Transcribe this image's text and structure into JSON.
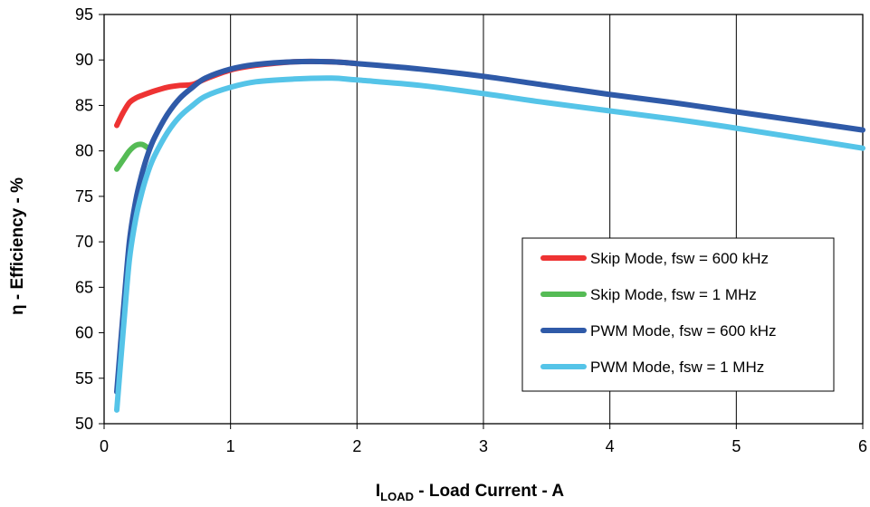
{
  "chart_data": {
    "type": "line",
    "title": "",
    "xlabel_main": "I",
    "xlabel_sub": "LOAD",
    "xlabel_rest": " - Load Current - A",
    "ylabel": "η - Efficiency - %",
    "xlim": [
      0,
      6
    ],
    "ylim": [
      50,
      95
    ],
    "xticks": [
      "0",
      "1",
      "2",
      "3",
      "4",
      "5",
      "6"
    ],
    "yticks": [
      "50",
      "55",
      "60",
      "65",
      "70",
      "75",
      "80",
      "85",
      "90",
      "95"
    ],
    "grid": "vertical",
    "legend_position": "lower-right",
    "series": [
      {
        "name": "Skip Mode, fsw = 600 kHz",
        "color": "#ee3333",
        "x": [
          0.1,
          0.15,
          0.2,
          0.25,
          0.3,
          0.4,
          0.5,
          0.6,
          0.7,
          0.8,
          1.0,
          1.2,
          1.5,
          1.8,
          2.0
        ],
        "y": [
          82.8,
          84.2,
          85.3,
          85.8,
          86.1,
          86.6,
          87.0,
          87.2,
          87.3,
          87.9,
          88.9,
          89.4,
          89.8,
          89.8,
          89.6
        ]
      },
      {
        "name": "Skip Mode, fsw = 1 MHz",
        "color": "#55bb55",
        "x": [
          0.1,
          0.15,
          0.2,
          0.25,
          0.3,
          0.35
        ],
        "y": [
          78.0,
          79.0,
          80.0,
          80.6,
          80.7,
          80.3
        ]
      },
      {
        "name": "PWM Mode, fsw = 600 kHz",
        "color": "#2f5aa8",
        "x": [
          0.1,
          0.15,
          0.2,
          0.25,
          0.3,
          0.35,
          0.4,
          0.5,
          0.6,
          0.7,
          0.8,
          1.0,
          1.2,
          1.5,
          1.8,
          2.0,
          2.5,
          3.0,
          3.5,
          4.0,
          4.5,
          5.0,
          5.5,
          6.0
        ],
        "y": [
          53.5,
          62.0,
          70.0,
          74.5,
          77.5,
          79.8,
          81.5,
          84.0,
          85.8,
          87.0,
          88.0,
          89.0,
          89.5,
          89.8,
          89.8,
          89.6,
          89.0,
          88.2,
          87.2,
          86.2,
          85.3,
          84.3,
          83.3,
          82.3
        ]
      },
      {
        "name": "PWM Mode, fsw = 1 MHz",
        "color": "#55c4e8",
        "x": [
          0.1,
          0.15,
          0.2,
          0.25,
          0.3,
          0.35,
          0.4,
          0.5,
          0.6,
          0.7,
          0.8,
          1.0,
          1.2,
          1.5,
          1.8,
          2.0,
          2.5,
          3.0,
          3.5,
          4.0,
          4.5,
          5.0,
          5.5,
          6.0
        ],
        "y": [
          51.5,
          60.0,
          68.0,
          72.5,
          75.5,
          77.8,
          79.5,
          82.0,
          83.8,
          85.0,
          86.0,
          87.0,
          87.6,
          87.9,
          88.0,
          87.8,
          87.2,
          86.3,
          85.3,
          84.4,
          83.5,
          82.5,
          81.4,
          80.3
        ]
      }
    ]
  }
}
